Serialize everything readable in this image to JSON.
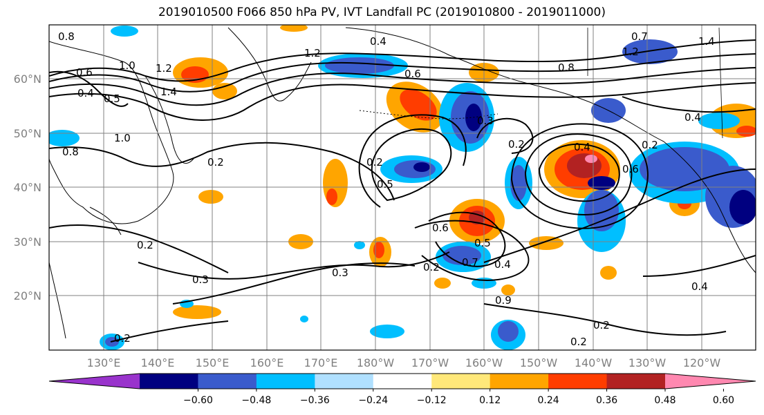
{
  "title": "2019010500 F066 850 hPa PV, IVT Landfall PC (2019010800 - 2019011000)",
  "lat_labels": [
    "60°N",
    "50°N",
    "40°N",
    "30°N",
    "20°N"
  ],
  "lon_labels": [
    "130°E",
    "140°E",
    "150°E",
    "160°E",
    "170°E",
    "180°W",
    "170°W",
    "160°W",
    "150°W",
    "140°W",
    "130°W",
    "120°W"
  ],
  "colorbar": {
    "ticks": [
      "−0.60",
      "−0.48",
      "−0.36",
      "−0.24",
      "−0.12",
      "0.12",
      "0.24",
      "0.36",
      "0.48",
      "0.60"
    ],
    "colors": [
      "#9933cc",
      "#000080",
      "#3a5bcc",
      "#00bfff",
      "#b0e0ff",
      "#ffffff",
      "#ffe87a",
      "#ffa500",
      "#ff3d00",
      "#b22222",
      "#ff88b0"
    ],
    "extend": "both"
  },
  "contour_labels": [
    "0.6",
    "1.0",
    "0.8",
    "0.4",
    "0.5",
    "1.0",
    "1.2",
    "1.4",
    "0.8",
    "0.2",
    "0.2",
    "0.3",
    "0.2",
    "0.2",
    "0.3",
    "0.2",
    "0.2",
    "0.5",
    "0.6",
    "0.4",
    "0.5",
    "0.7",
    "0.9",
    "0.4",
    "0.2",
    "0.2",
    "0.2",
    "0.4",
    "0.6",
    "0.4",
    "1.2",
    "0.8",
    "1.2",
    "0.7",
    "1.4",
    "0.3",
    "0.6",
    "0.4"
  ],
  "colors": {
    "grid": "#808080",
    "contour": "#000000",
    "coast": "#000000"
  }
}
